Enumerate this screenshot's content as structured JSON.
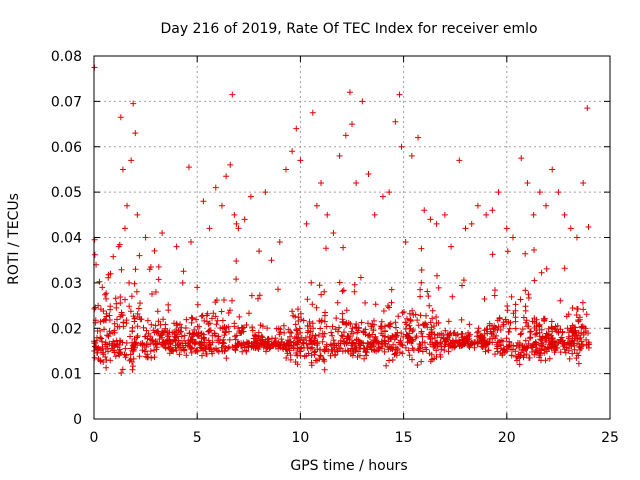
{
  "chart_data": {
    "type": "scatter",
    "title": "Day 216 of 2019, Rate Of TEC Index for receiver emlo",
    "xlabel": "GPS time / hours",
    "ylabel": "ROTI / TECUs",
    "xlim": [
      0,
      25
    ],
    "ylim": [
      0,
      0.08
    ],
    "grid": true,
    "marker": "+",
    "color": "#e00000",
    "x_ticks": [
      0,
      5,
      10,
      15,
      20,
      25
    ],
    "x_tick_labels": [
      "0",
      "5",
      "10",
      "15",
      "20",
      "25"
    ],
    "y_ticks": [
      0,
      0.01,
      0.02,
      0.03,
      0.04,
      0.05,
      0.06,
      0.07,
      0.08
    ],
    "y_tick_labels": [
      "0",
      "0.01",
      "0.02",
      "0.03",
      "0.04",
      "0.05",
      "0.06",
      "0.07",
      "0.08"
    ],
    "series": [
      {
        "name": "ROTI",
        "x": [
          0.02,
          0.03,
          0.05,
          0.1,
          0.2,
          0.3,
          0.4,
          0.6,
          0.8,
          1.0,
          1.2,
          1.3,
          1.4,
          1.5,
          1.6,
          1.7,
          1.8,
          1.9,
          2.0,
          2.1,
          2.2,
          2.3,
          2.5,
          2.7,
          3.0,
          3.3,
          3.6,
          4.0,
          4.3,
          4.6,
          4.7,
          5.0,
          5.3,
          5.6,
          5.9,
          6.2,
          6.4,
          6.6,
          6.7,
          6.8,
          6.9,
          7.0,
          7.3,
          7.6,
          8.0,
          8.3,
          8.6,
          9.0,
          9.3,
          9.6,
          9.8,
          10.0,
          10.3,
          10.6,
          10.8,
          11.0,
          11.3,
          11.6,
          11.9,
          12.2,
          12.4,
          12.5,
          12.7,
          13.0,
          13.3,
          13.6,
          14.0,
          14.3,
          14.6,
          14.8,
          14.9,
          15.1,
          15.4,
          15.7,
          16.0,
          16.3,
          16.6,
          17.0,
          17.3,
          17.7,
          18.0,
          18.3,
          18.6,
          19.0,
          19.3,
          19.6,
          20.0,
          20.3,
          20.7,
          21.0,
          21.3,
          21.6,
          21.9,
          22.2,
          22.5,
          22.8,
          23.1,
          23.4,
          23.7,
          23.9
        ],
        "y": [
          0.0775,
          0.0395,
          0.016,
          0.034,
          0.025,
          0.018,
          0.029,
          0.013,
          0.032,
          0.021,
          0.038,
          0.0665,
          0.055,
          0.042,
          0.047,
          0.03,
          0.057,
          0.0695,
          0.063,
          0.045,
          0.036,
          0.022,
          0.04,
          0.033,
          0.028,
          0.041,
          0.024,
          0.038,
          0.03,
          0.0555,
          0.039,
          0.029,
          0.048,
          0.042,
          0.051,
          0.047,
          0.0535,
          0.056,
          0.0715,
          0.045,
          0.043,
          0.042,
          0.044,
          0.049,
          0.037,
          0.05,
          0.035,
          0.039,
          0.055,
          0.059,
          0.064,
          0.057,
          0.043,
          0.0675,
          0.047,
          0.052,
          0.045,
          0.041,
          0.058,
          0.0625,
          0.072,
          0.065,
          0.052,
          0.07,
          0.054,
          0.045,
          0.049,
          0.05,
          0.0655,
          0.0715,
          0.06,
          0.039,
          0.058,
          0.062,
          0.046,
          0.044,
          0.043,
          0.045,
          0.038,
          0.057,
          0.042,
          0.043,
          0.047,
          0.045,
          0.046,
          0.05,
          0.042,
          0.04,
          0.0575,
          0.052,
          0.045,
          0.05,
          0.047,
          0.055,
          0.05,
          0.045,
          0.042,
          0.04,
          0.052,
          0.0685
        ]
      }
    ]
  }
}
